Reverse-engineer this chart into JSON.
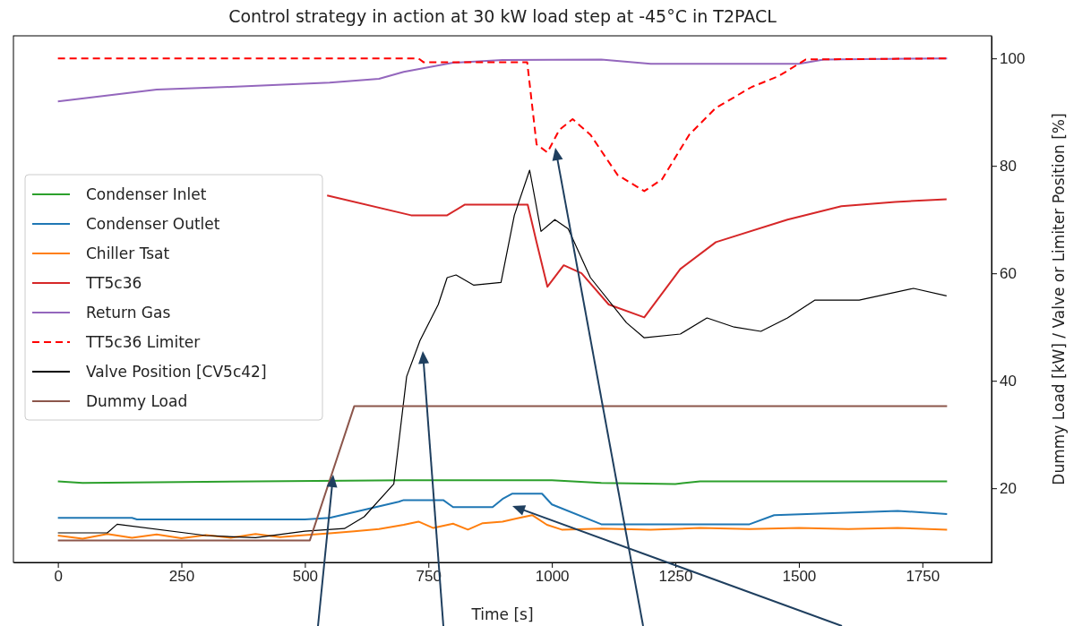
{
  "chart_data": {
    "type": "line",
    "title": "Control strategy in action at 30 kW load step at -45°C in T2PACL",
    "xlabel": "Time [s]",
    "ylabel": "Dummy Load [kW] / Valve or Limiter Position [%]",
    "xlim": [
      -90,
      1890
    ],
    "xticks": [
      0,
      250,
      500,
      750,
      1000,
      1250,
      1500,
      1750
    ],
    "ylim": [
      6.2,
      104.2
    ],
    "yticks": [
      20,
      40,
      60,
      80,
      100
    ],
    "legend": "left",
    "grid": false,
    "series": [
      {
        "name": "Condenser Inlet",
        "color": "#2ca02c",
        "x": [
          0,
          50,
          700,
          1000,
          1100,
          1250,
          1300,
          1800
        ],
        "values": [
          21.3,
          21.0,
          21.5,
          21.5,
          21.0,
          20.8,
          21.3,
          21.3
        ]
      },
      {
        "name": "Condenser Outlet",
        "color": "#1f77b4",
        "x": [
          0,
          150,
          160,
          500,
          550,
          690,
          700,
          780,
          800,
          880,
          900,
          920,
          980,
          1000,
          1100,
          1400,
          1450,
          1700,
          1800
        ],
        "values": [
          14.5,
          14.5,
          14.2,
          14.2,
          14.5,
          17.5,
          17.8,
          17.8,
          16.5,
          16.5,
          18,
          19,
          19,
          17,
          13.3,
          13.3,
          15,
          15.8,
          15.2
        ]
      },
      {
        "name": "Chiller Tsat",
        "color": "#ff7f0e",
        "x": [
          0,
          50,
          100,
          150,
          200,
          250,
          300,
          350,
          400,
          450,
          500,
          550,
          600,
          650,
          700,
          730,
          760,
          800,
          830,
          860,
          900,
          930,
          960,
          990,
          1020,
          1100,
          1200,
          1300,
          1400,
          1500,
          1600,
          1700,
          1800
        ],
        "values": [
          11.2,
          10.6,
          11.5,
          10.8,
          11.4,
          10.7,
          11.3,
          10.8,
          11.5,
          10.9,
          11.3,
          11.6,
          12,
          12.4,
          13.2,
          13.8,
          12.6,
          13.4,
          12.3,
          13.5,
          13.8,
          14.4,
          15,
          13.2,
          12.3,
          12.5,
          12.3,
          12.6,
          12.4,
          12.6,
          12.4,
          12.6,
          12.3
        ]
      },
      {
        "name": "TT5c36",
        "color": "#d62728",
        "x": [
          545,
          715,
          788,
          824,
          951,
          969,
          991,
          1024,
          1060,
          1115,
          1187,
          1260,
          1332,
          1477,
          1586,
          1695,
          1799
        ],
        "values": [
          74.5,
          70.8,
          70.8,
          72.8,
          72.8,
          65.8,
          57.5,
          61.5,
          60,
          54.2,
          51.8,
          60.8,
          65.8,
          70,
          72.5,
          73.3,
          73.8
        ]
      },
      {
        "name": "Return Gas",
        "color": "#9467bd",
        "x": [
          0,
          200,
          350,
          550,
          650,
          700,
          800,
          900,
          1100,
          1200,
          1500,
          1550,
          1800
        ],
        "values": [
          92,
          94.2,
          94.7,
          95.5,
          96.2,
          97.5,
          99.2,
          99.7,
          99.8,
          99,
          99,
          99.8,
          100
        ]
      },
      {
        "name": "TT5c36 Limiter",
        "color": "#ff0000",
        "line_style": "dashed",
        "x": [
          0,
          730,
          740,
          950,
          969,
          991,
          1015,
          1042,
          1078,
          1133,
          1187,
          1223,
          1278,
          1332,
          1405,
          1459,
          1514,
          1800
        ],
        "values": [
          100,
          100,
          99.3,
          99.3,
          84,
          82.5,
          86.7,
          88.7,
          85.8,
          78.3,
          75.3,
          77.5,
          85.8,
          90.8,
          94.7,
          96.7,
          99.8,
          100
        ]
      },
      {
        "name": "Valve Position [CV5c42]",
        "color": "#000000",
        "x": [
          0,
          100,
          120,
          300,
          400,
          500,
          580,
          620,
          680,
          706,
          733,
          770,
          788,
          806,
          842,
          897,
          924,
          955,
          978,
          1006,
          1033,
          1078,
          1151,
          1187,
          1260,
          1314,
          1369,
          1423,
          1477,
          1532,
          1622,
          1732,
          1799
        ],
        "values": [
          11.7,
          11.7,
          13.3,
          11.2,
          10.8,
          12,
          12.5,
          14.7,
          20.8,
          40.8,
          47.5,
          54.2,
          59.2,
          59.7,
          57.8,
          58.3,
          70.8,
          79.2,
          67.8,
          70,
          68.3,
          59.2,
          50.8,
          48,
          48.7,
          51.7,
          50,
          49.2,
          51.7,
          55,
          55,
          57.2,
          55.8
        ]
      },
      {
        "name": "Dummy Load",
        "color": "#8c564b",
        "x": [
          0,
          510,
          600,
          1800
        ],
        "values": [
          10.3,
          10.3,
          35.3,
          35.3
        ]
      }
    ]
  }
}
